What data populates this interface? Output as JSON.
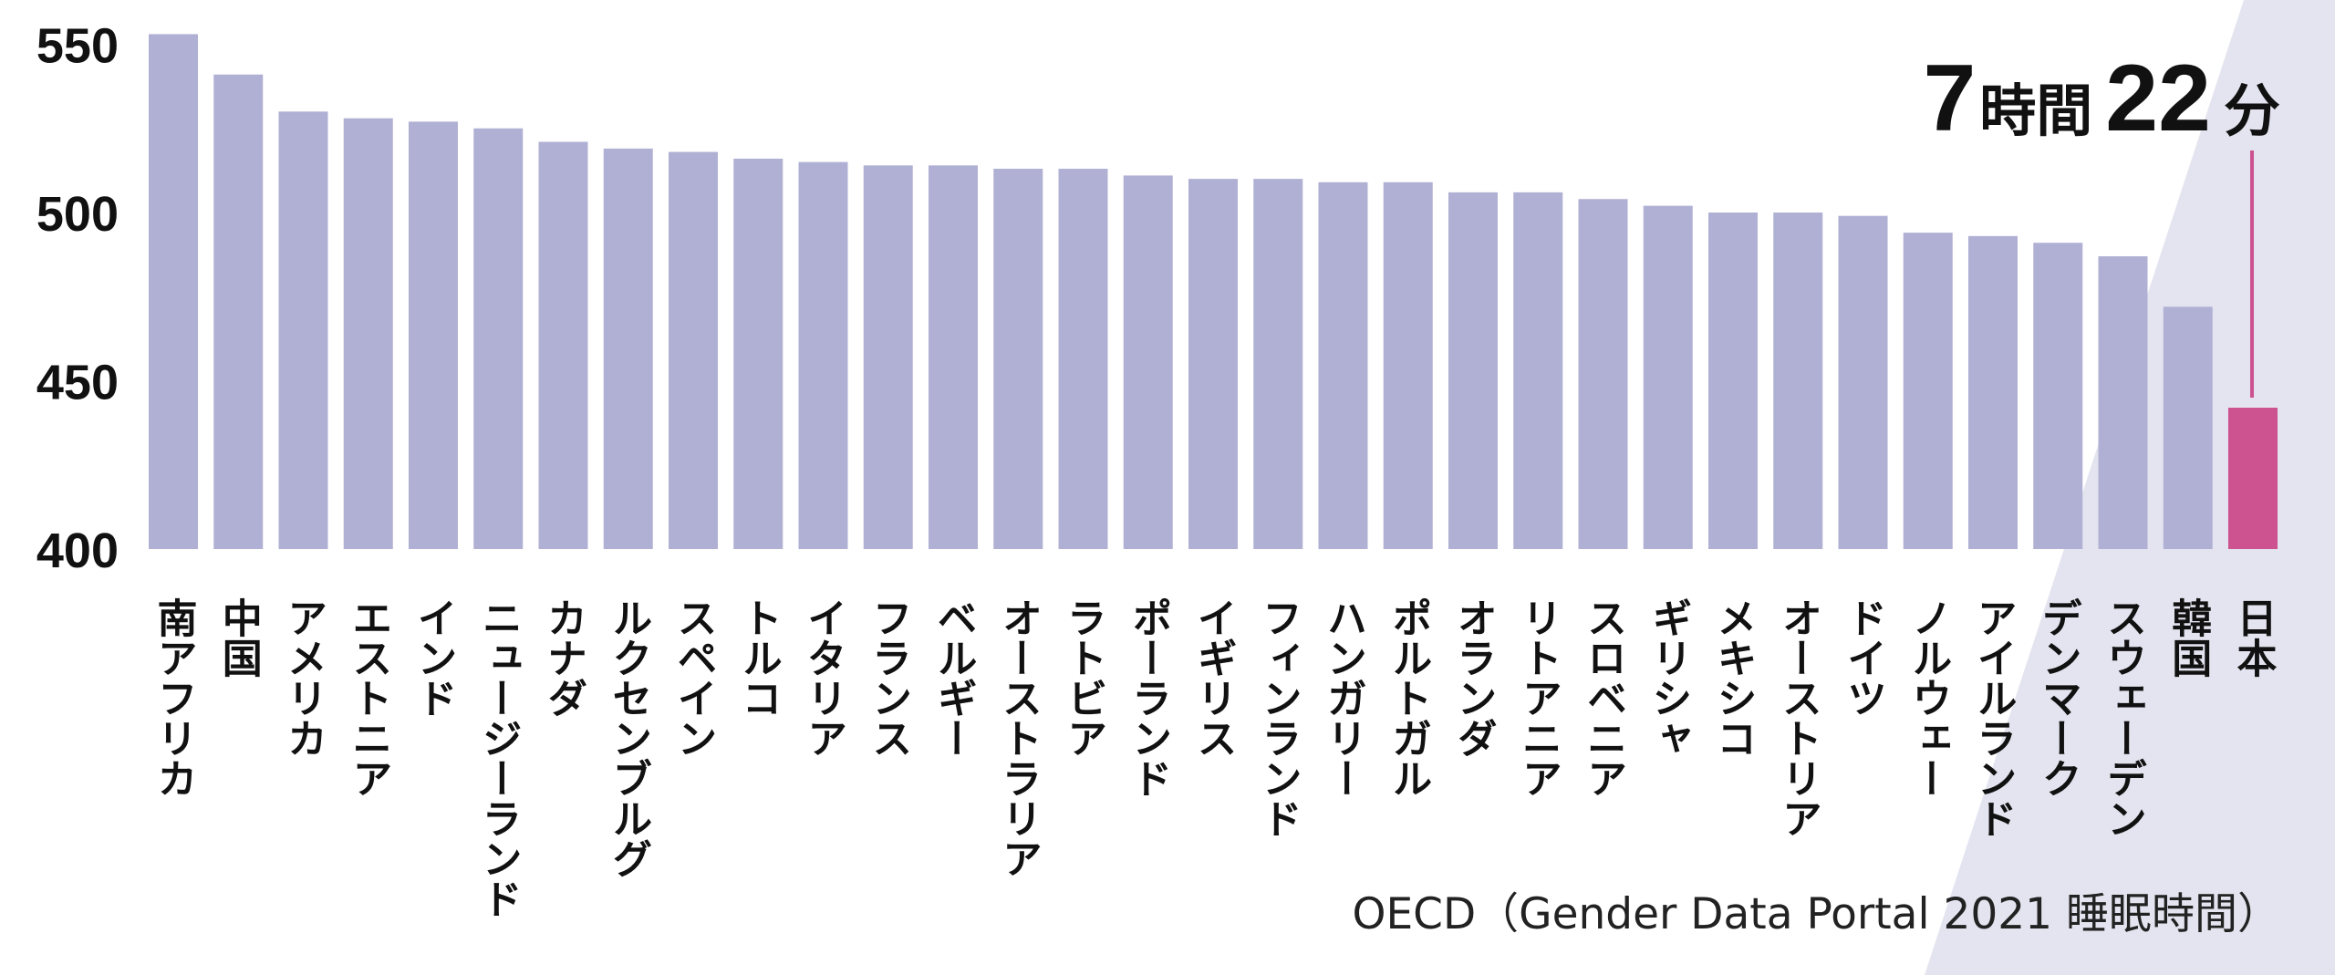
{
  "chart_data": {
    "type": "bar",
    "categories": [
      "南アフリカ",
      "中国",
      "アメリカ",
      "エストニア",
      "インド",
      "ニュージーランド",
      "カナダ",
      "ルクセンブルグ",
      "スペイン",
      "トルコ",
      "イタリア",
      "フランス",
      "ベルギー",
      "オーストラリア",
      "ラトビア",
      "ポーランド",
      "イギリス",
      "フィンランド",
      "ハンガリー",
      "ポルトガル",
      "オランダ",
      "リトアニア",
      "スロベニア",
      "ギリシャ",
      "メキシコ",
      "オーストリア",
      "ドイツ",
      "ノルウェー",
      "アイルランド",
      "デンマーク",
      "スウェーデン",
      "韓国",
      "日本"
    ],
    "values": [
      553,
      541,
      530,
      528,
      527,
      525,
      521,
      519,
      518,
      516,
      515,
      514,
      514,
      513,
      513,
      511,
      510,
      510,
      509,
      509,
      506,
      506,
      504,
      502,
      500,
      500,
      499,
      494,
      493,
      491,
      487,
      472,
      442
    ],
    "ylim": [
      400,
      555
    ],
    "yticks": [
      "400",
      "450",
      "500",
      "550"
    ],
    "highlight_index": 32,
    "colors": {
      "bar": "#b0b0d4",
      "highlight": "#cc5290",
      "background_band": "#e4e4f0",
      "annotation_line": "#cc5290"
    },
    "annotation": {
      "num1": "7",
      "unit1": "時間",
      "num2": "22",
      "unit2": "分"
    },
    "source_note": "OECD（Gender Data Portal 2021 睡眠時間）",
    "grid": false,
    "legend": "none"
  }
}
